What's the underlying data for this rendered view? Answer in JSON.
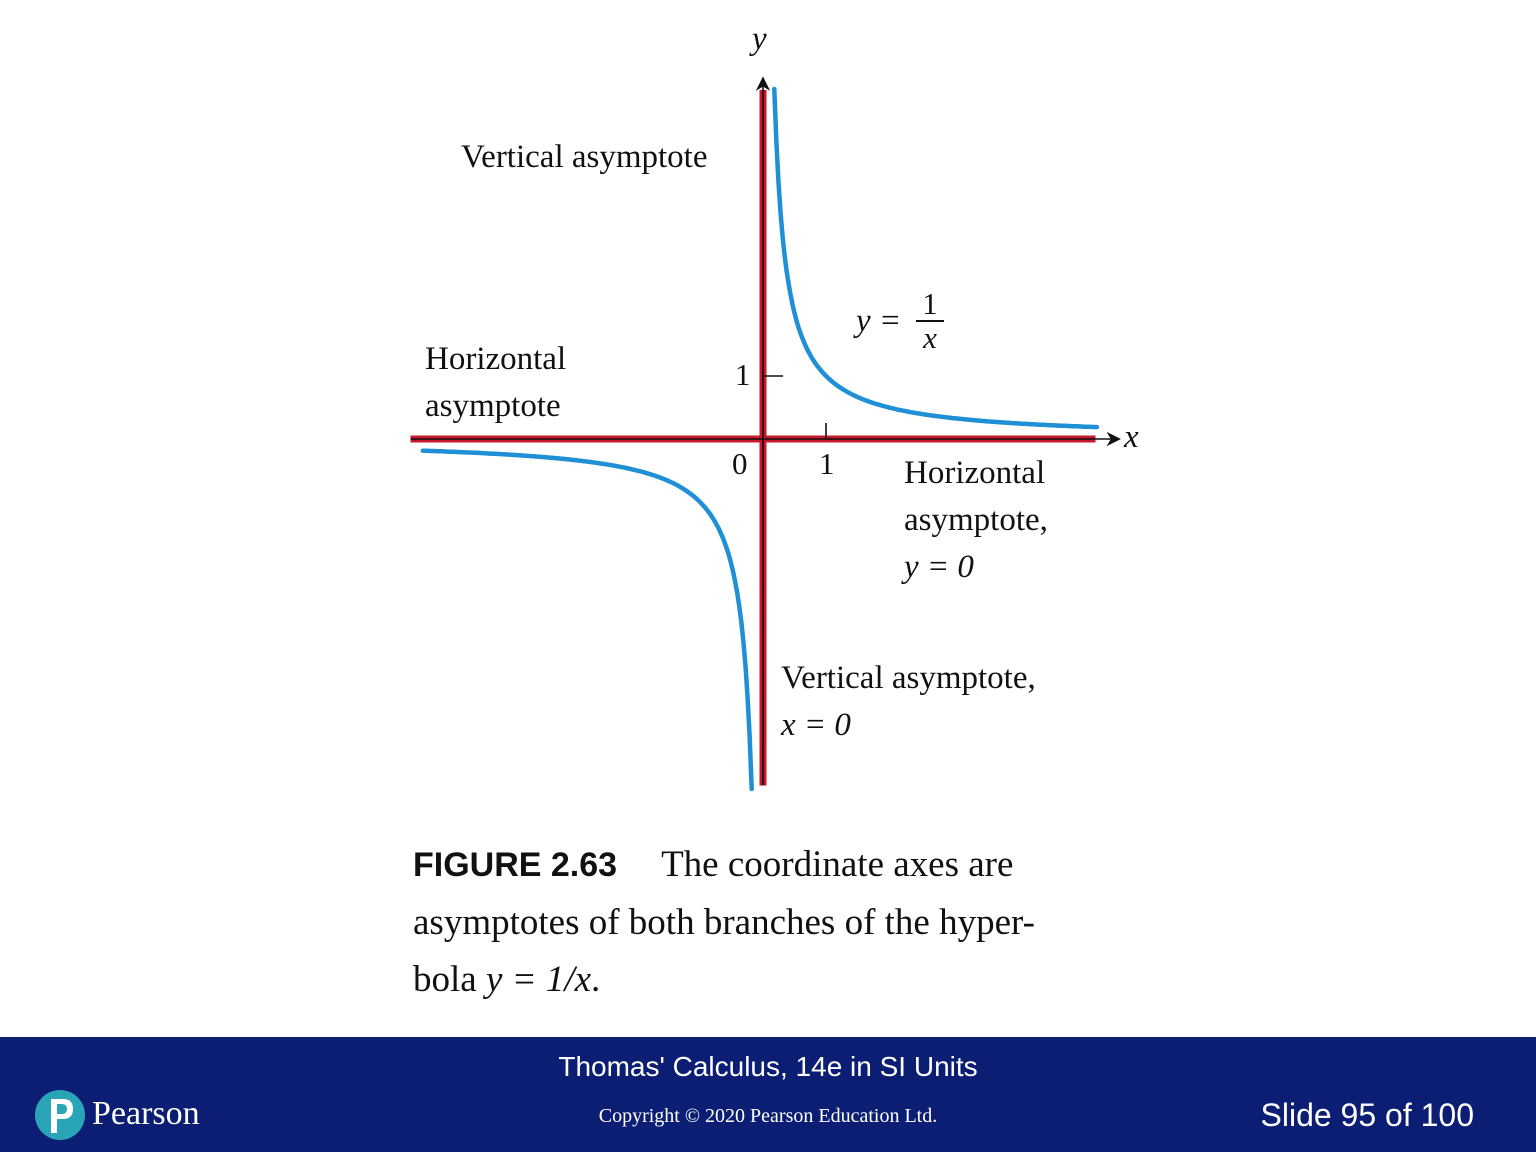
{
  "chart_data": {
    "type": "line",
    "function": "y = 1/x",
    "series": [
      {
        "values": [
          [
            -5.4,
            -0.185
          ],
          [
            -4,
            -0.25
          ],
          [
            -3,
            -0.333
          ],
          [
            -2,
            -0.5
          ],
          [
            -1.5,
            -0.667
          ],
          [
            -1,
            -1
          ],
          [
            -0.75,
            -1.333
          ],
          [
            -0.5,
            -2
          ],
          [
            -0.35,
            -2.857
          ],
          [
            -0.25,
            -4
          ],
          [
            -0.18,
            -5.556
          ]
        ]
      },
      {
        "values": [
          [
            0.18,
            5.556
          ],
          [
            0.25,
            4
          ],
          [
            0.35,
            2.857
          ],
          [
            0.5,
            2
          ],
          [
            0.75,
            1.333
          ],
          [
            1,
            1
          ],
          [
            1.5,
            0.667
          ],
          [
            2,
            0.5
          ],
          [
            3,
            0.333
          ],
          [
            4,
            0.25
          ],
          [
            5.3,
            0.189
          ]
        ]
      }
    ],
    "xlim": [
      -5.5,
      5.5
    ],
    "ylim": [
      -5.5,
      5.7
    ],
    "asymptotes": [
      {
        "type": "vertical",
        "at": 0,
        "color": "#c8182b"
      },
      {
        "type": "horizontal",
        "at": 0,
        "color": "#c8182b"
      }
    ],
    "curve_color": "#1f8fd6",
    "axis_labels": {
      "x": "x",
      "y": "y"
    },
    "ticks": {
      "x_zero": "0",
      "x": [
        1
      ],
      "x_label": "1",
      "y": [
        1
      ],
      "y_label": "1"
    },
    "annotations": {
      "vertical_top": "Vertical asymptote",
      "horizontal_left_1": "Horizontal",
      "horizontal_left_2": "asymptote",
      "equation_y": "y =",
      "equation_num": "1",
      "equation_den": "x",
      "horizontal_right_1": "Horizontal",
      "horizontal_right_2": "asymptote,",
      "horizontal_right_3": "y = 0",
      "vertical_bottom_1": "Vertical asymptote,",
      "vertical_bottom_2": "x = 0"
    }
  },
  "caption": {
    "figure_number": "FIGURE 2.63",
    "line1": "The coordinate axes are",
    "line2": "asymptotes of both branches of the hyper-",
    "line3_prefix": "bola",
    "line3_math": "y = 1/x",
    "line3_suffix": "."
  },
  "footer": {
    "title": "Thomas' Calculus, 14e in SI Units",
    "copyright": "Copyright © 2020 Pearson Education Ltd.",
    "brand": "Pearson",
    "slide": "Slide 95 of 100",
    "colors": {
      "background": "#0b1e74",
      "logo": "#2aa5b8"
    }
  }
}
